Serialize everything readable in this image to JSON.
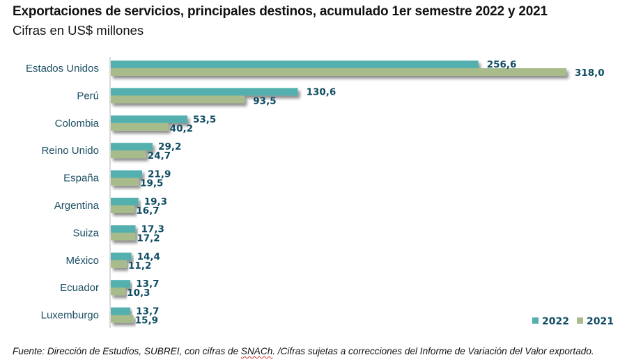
{
  "header": {
    "title": "Exportaciones de servicios, principales destinos, acumulado 1er semestre 2022 y 2021",
    "subtitle": "Cifras en US$ millones"
  },
  "footnote": {
    "before": "Fuente: Dirección de Estudios, SUBREI, con cifras de ",
    "flagged_word": "SNACh",
    "after": ". /Cifras sujetas a correcciones del Informe de Variación del Valor exportado."
  },
  "chart_data": {
    "type": "bar",
    "orientation": "horizontal",
    "title": "Exportaciones de servicios, principales destinos, acumulado 1er semestre 2022 y 2021",
    "subtitle": "Cifras en US$ millones",
    "xlabel": "",
    "ylabel": "",
    "unit": "US$ millones",
    "grid": false,
    "legend_position": "bottom-right",
    "categories": [
      "Estados Unidos",
      "Perú",
      "Colombia",
      "Reino Unido",
      "España",
      "Argentina",
      "Suiza",
      "México",
      "Ecuador",
      "Luxemburgo"
    ],
    "series": [
      {
        "name": "2022",
        "color": "#53b0ae",
        "values": [
          256.6,
          130.6,
          53.5,
          29.2,
          21.9,
          19.3,
          17.3,
          14.4,
          13.7,
          13.7
        ],
        "labels": [
          "256,6",
          "130,6",
          "53,5",
          "29,2",
          "21,9",
          "19,3",
          "17,3",
          "14,4",
          "13,7",
          "13,7"
        ]
      },
      {
        "name": "2021",
        "color": "#a7bb8b",
        "values": [
          318.0,
          93.5,
          40.2,
          24.7,
          19.5,
          16.7,
          17.2,
          11.2,
          10.3,
          15.9
        ],
        "labels": [
          "318,0",
          "93,5",
          "40,2",
          "24,7",
          "19,5",
          "16,7",
          "17,2",
          "11,2",
          "10,3",
          "15,9"
        ]
      }
    ],
    "xlim": [
      0,
      318.0
    ]
  },
  "colors": {
    "label_text": "#0f4d63",
    "category_text": "#1b4f63",
    "axis": "#d9d9d9"
  }
}
